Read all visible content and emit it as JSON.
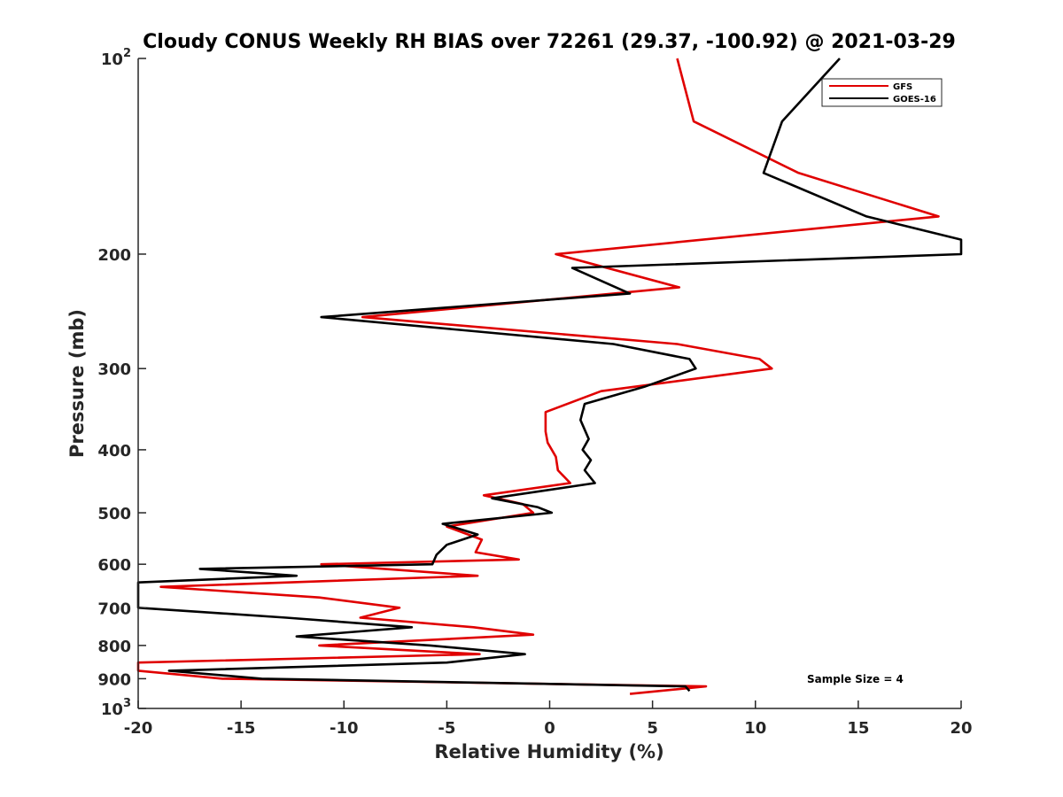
{
  "chart_data": {
    "type": "line",
    "title": "Cloudy CONUS Weekly RH BIAS over 72261 (29.37, -100.92) @ 2021-03-29",
    "xlabel": "Relative Humidity (%)",
    "ylabel": "Pressure (mb)",
    "xlim": [
      -20,
      20
    ],
    "ylim": [
      100,
      1000
    ],
    "yscale": "log",
    "y_reversed": true,
    "x_ticks": [
      -20,
      -15,
      -10,
      -5,
      0,
      5,
      10,
      15,
      20
    ],
    "x_tick_labels": [
      "-20",
      "-15",
      "-10",
      "-5",
      "0",
      "5",
      "10",
      "15",
      "20"
    ],
    "y_ticks": [
      100,
      200,
      300,
      400,
      500,
      600,
      700,
      800,
      900,
      1000
    ],
    "y_tick_labels": [
      {
        "value": 100,
        "base": "10",
        "exp": "2"
      },
      {
        "value": 200,
        "base": "200",
        "exp": ""
      },
      {
        "value": 300,
        "base": "300",
        "exp": ""
      },
      {
        "value": 400,
        "base": "400",
        "exp": ""
      },
      {
        "value": 500,
        "base": "500",
        "exp": ""
      },
      {
        "value": 600,
        "base": "600",
        "exp": ""
      },
      {
        "value": 700,
        "base": "700",
        "exp": ""
      },
      {
        "value": 800,
        "base": "800",
        "exp": ""
      },
      {
        "value": 900,
        "base": "900",
        "exp": ""
      },
      {
        "value": 1000,
        "base": "10",
        "exp": "3"
      }
    ],
    "grid": false,
    "legend_position": "top-right",
    "annotation": "Sample Size = 4",
    "series": [
      {
        "name": "GFS",
        "color": "#e00000",
        "points": [
          [
            6.2,
            100
          ],
          [
            7.0,
            125
          ],
          [
            12.1,
            150
          ],
          [
            18.9,
            175
          ],
          [
            0.3,
            200
          ],
          [
            6.3,
            225
          ],
          [
            -9.1,
            250
          ],
          [
            6.2,
            275
          ],
          [
            10.2,
            290
          ],
          [
            10.8,
            300
          ],
          [
            2.5,
            325
          ],
          [
            -0.2,
            350
          ],
          [
            -0.2,
            375
          ],
          [
            -0.1,
            390
          ],
          [
            0.3,
            410
          ],
          [
            0.4,
            430
          ],
          [
            1.0,
            450
          ],
          [
            -3.2,
            470
          ],
          [
            -1.3,
            485
          ],
          [
            -0.8,
            500
          ],
          [
            -5.0,
            525
          ],
          [
            -3.3,
            550
          ],
          [
            -3.6,
            575
          ],
          [
            -1.5,
            590
          ],
          [
            -11.1,
            600
          ],
          [
            -3.5,
            625
          ],
          [
            -18.9,
            650
          ],
          [
            -11.2,
            675
          ],
          [
            -7.3,
            700
          ],
          [
            -9.2,
            725
          ],
          [
            -3.7,
            750
          ],
          [
            -0.8,
            770
          ],
          [
            -11.2,
            800
          ],
          [
            -3.4,
            825
          ],
          [
            -20.0,
            850
          ],
          [
            -20.0,
            875
          ],
          [
            -15.9,
            900
          ],
          [
            7.6,
            925
          ],
          [
            3.9,
            950
          ]
        ]
      },
      {
        "name": "GOES-16",
        "color": "#000000",
        "points": [
          [
            14.1,
            100
          ],
          [
            11.3,
            125
          ],
          [
            10.4,
            150
          ],
          [
            15.4,
            175
          ],
          [
            20.0,
            190
          ],
          [
            20.0,
            200
          ],
          [
            1.1,
            210
          ],
          [
            3.9,
            230
          ],
          [
            -11.1,
            250
          ],
          [
            3.1,
            275
          ],
          [
            6.8,
            290
          ],
          [
            7.1,
            300
          ],
          [
            4.6,
            320
          ],
          [
            1.7,
            340
          ],
          [
            1.5,
            360
          ],
          [
            1.9,
            385
          ],
          [
            1.6,
            400
          ],
          [
            2.0,
            415
          ],
          [
            1.7,
            430
          ],
          [
            2.2,
            450
          ],
          [
            -2.8,
            475
          ],
          [
            -0.6,
            490
          ],
          [
            0.1,
            500
          ],
          [
            -5.2,
            520
          ],
          [
            -3.5,
            540
          ],
          [
            -5.0,
            560
          ],
          [
            -5.5,
            580
          ],
          [
            -5.7,
            600
          ],
          [
            -17.0,
            610
          ],
          [
            -12.3,
            625
          ],
          [
            -20.0,
            640
          ],
          [
            -20.0,
            700
          ],
          [
            -12.8,
            725
          ],
          [
            -6.7,
            750
          ],
          [
            -12.3,
            775
          ],
          [
            -5.8,
            800
          ],
          [
            -1.2,
            825
          ],
          [
            -5.0,
            850
          ],
          [
            -18.5,
            875
          ],
          [
            -14.0,
            900
          ],
          [
            6.6,
            925
          ],
          [
            6.8,
            940
          ]
        ]
      }
    ]
  }
}
